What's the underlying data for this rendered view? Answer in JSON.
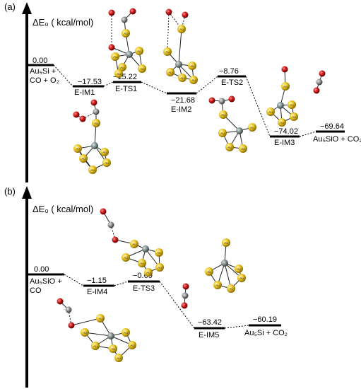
{
  "panels": [
    {
      "label": "(a)",
      "axis_title": "ΔE₀ ( kcal/mol)",
      "levels": [
        {
          "energy": "0.00",
          "name_lines": [
            "Au₅Si +",
            "CO + O₂"
          ]
        },
        {
          "energy": "−17.53",
          "name_lines": [
            "E-IM1"
          ]
        },
        {
          "energy": "−15.22",
          "name_lines": [
            "E-TS1"
          ]
        },
        {
          "energy": "−21.68",
          "name_lines": [
            "E-IM2"
          ]
        },
        {
          "energy": "−8.76",
          "name_lines": [
            "E-TS2"
          ]
        },
        {
          "energy": "−74.02",
          "name_lines": [
            "E-IM3"
          ]
        },
        {
          "energy": "−69.64",
          "name_lines": [
            "Au₅SiO + CO₂"
          ]
        }
      ]
    },
    {
      "label": "(b)",
      "axis_title": "ΔE₀ ( kcal/mol)",
      "levels": [
        {
          "energy": "0.00",
          "name_lines": [
            "Au₅SiO +",
            "CO"
          ]
        },
        {
          "energy": "−1.15",
          "name_lines": [
            "E-IM4"
          ]
        },
        {
          "energy": "−0.69",
          "name_lines": [
            "E-TS3"
          ]
        },
        {
          "energy": "−63.42",
          "name_lines": [
            "E-IM5"
          ]
        },
        {
          "energy": "−60.19",
          "name_lines": [
            "Au₅Si + CO₂"
          ]
        }
      ]
    }
  ],
  "atom_labels": {
    "gold": "Au"
  },
  "colors": {
    "gold": "#e8c21c",
    "silicon": "#7d8c8c",
    "oxygen": "#c81414",
    "carbon": "#8a8a8a",
    "line": "#000000"
  }
}
